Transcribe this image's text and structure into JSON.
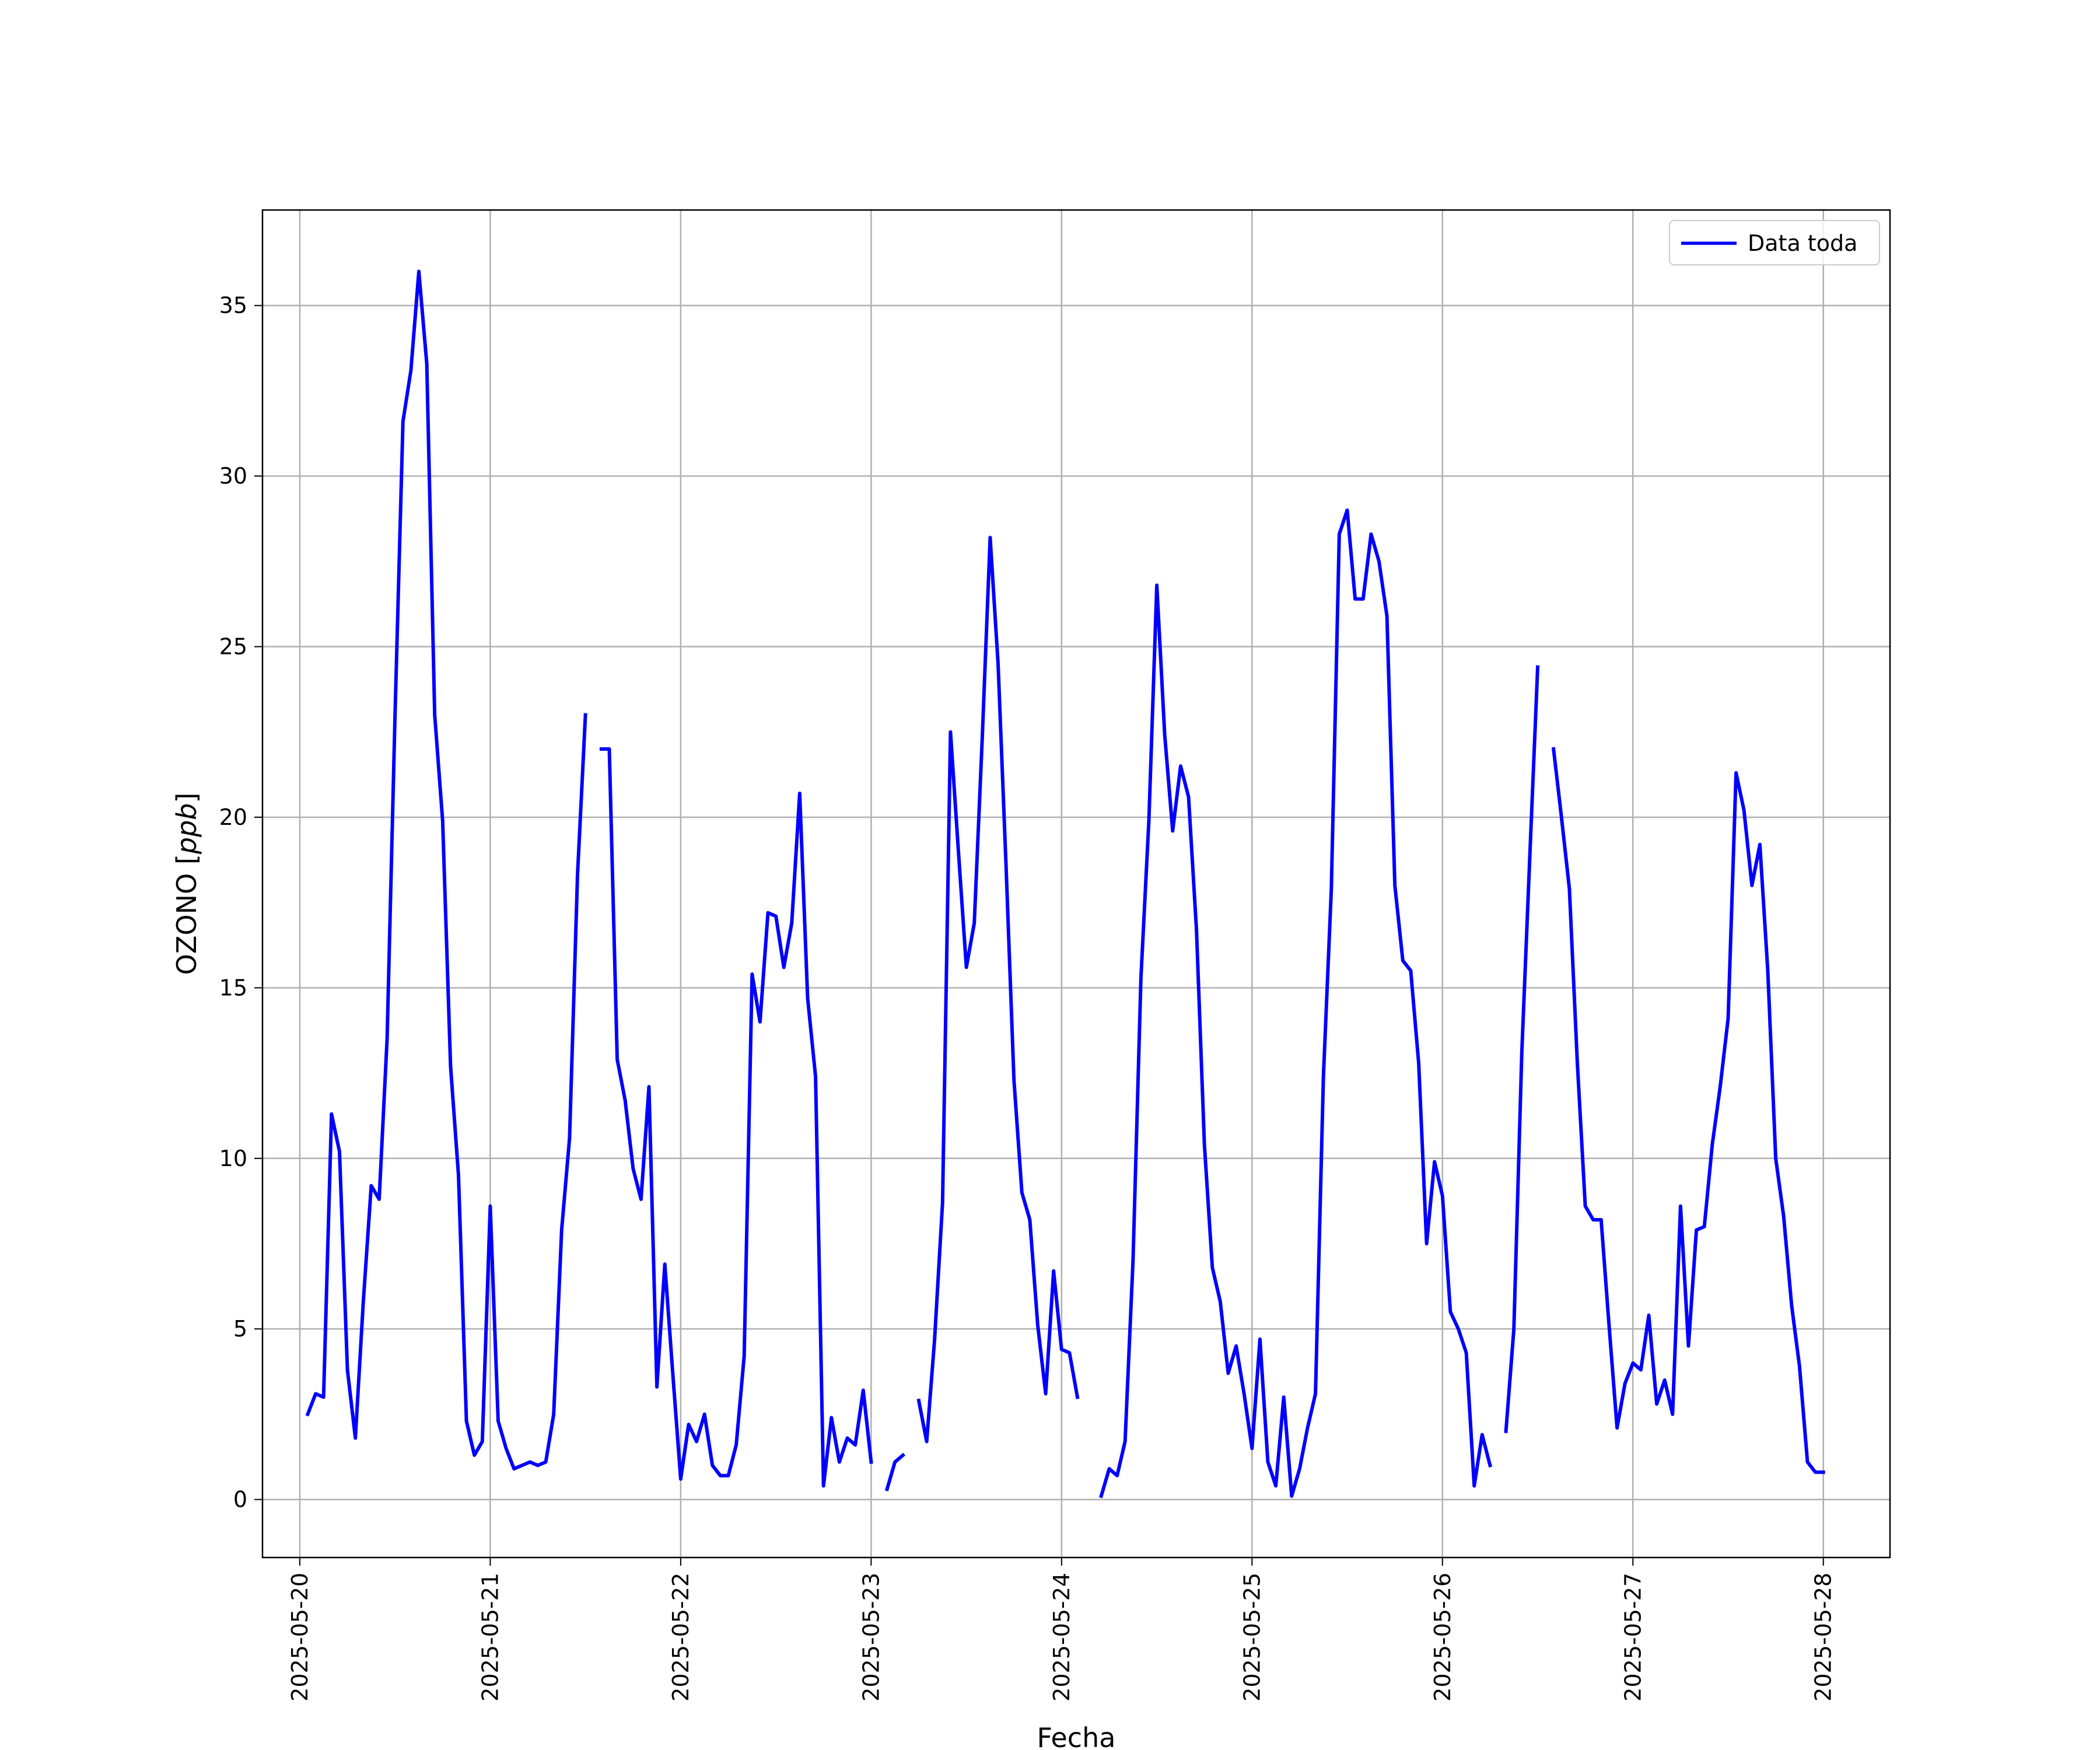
{
  "chart_data": {
    "type": "line",
    "xlabel": "Fecha",
    "ylabel_prefix": "OZONO [",
    "ylabel_unit": "ppb",
    "ylabel_suffix": "]",
    "xlim": [
      "2025-05-19T19:18",
      "2025-05-28T08:24"
    ],
    "ylim": [
      -1.7,
      37.8
    ],
    "x_ticks": [
      "2025-05-20",
      "2025-05-21",
      "2025-05-22",
      "2025-05-23",
      "2025-05-24",
      "2025-05-25",
      "2025-05-26",
      "2025-05-27",
      "2025-05-28"
    ],
    "y_ticks": [
      0,
      5,
      10,
      15,
      20,
      25,
      30,
      35
    ],
    "y_tick_labels": [
      "0",
      "5",
      "10",
      "15",
      "20",
      "25",
      "30",
      "35"
    ],
    "grid": true,
    "legend_position": "top-right",
    "series": [
      {
        "name": "Data toda",
        "color": "#0000ff",
        "start": "2025-05-20T01:00",
        "step_hours": 1,
        "values": [
          2.5,
          3.1,
          3.0,
          11.3,
          10.2,
          3.8,
          1.8,
          5.8,
          9.2,
          8.8,
          13.5,
          23.0,
          31.6,
          33.1,
          36.0,
          33.3,
          23.0,
          19.9,
          12.7,
          9.5,
          2.3,
          1.3,
          1.7,
          8.6,
          2.3,
          1.5,
          0.9,
          1.0,
          1.1,
          1.0,
          1.1,
          2.5,
          7.9,
          10.6,
          18.3,
          23.0,
          null,
          22.0,
          22.0,
          12.9,
          11.7,
          9.7,
          8.8,
          12.1,
          3.3,
          6.9,
          3.7,
          0.6,
          2.2,
          1.7,
          2.5,
          1.0,
          0.7,
          0.7,
          1.6,
          4.2,
          15.4,
          14.0,
          17.2,
          17.1,
          15.6,
          16.9,
          20.7,
          14.7,
          12.4,
          0.4,
          2.4,
          1.1,
          1.8,
          1.6,
          3.2,
          1.1,
          null,
          0.3,
          1.1,
          1.3,
          null,
          2.9,
          1.7,
          4.7,
          8.7,
          22.5,
          19.0,
          15.6,
          16.9,
          22.3,
          28.2,
          24.5,
          18.6,
          12.3,
          9.0,
          8.2,
          5.1,
          3.1,
          6.7,
          4.4,
          4.3,
          3.0,
          null,
          null,
          0.1,
          0.9,
          0.7,
          1.7,
          7.0,
          15.3,
          19.9,
          26.8,
          22.4,
          19.6,
          21.5,
          20.6,
          16.7,
          10.4,
          6.8,
          5.8,
          3.7,
          4.5,
          3.1,
          1.5,
          4.7,
          1.1,
          0.4,
          3.0,
          0.1,
          0.9,
          2.1,
          3.1,
          12.4,
          17.9,
          28.3,
          29.0,
          26.4,
          26.4,
          28.3,
          27.5,
          25.9,
          18.0,
          15.8,
          15.5,
          12.8,
          7.5,
          9.9,
          8.9,
          5.5,
          5.0,
          4.3,
          0.4,
          1.9,
          1.0,
          null,
          2.0,
          5.0,
          13.1,
          18.8,
          24.4,
          null,
          22.0,
          20.0,
          17.9,
          12.8,
          8.6,
          8.2,
          8.2,
          5.1,
          2.1,
          3.4,
          4.0,
          3.8,
          5.4,
          2.8,
          3.5,
          2.5,
          8.6,
          4.5,
          7.9,
          8.0,
          10.4,
          12.1,
          14.1,
          21.3,
          20.2,
          18.0,
          19.2,
          15.5,
          10.0,
          8.3,
          5.7,
          3.9,
          1.1,
          0.8,
          0.8
        ]
      }
    ]
  }
}
